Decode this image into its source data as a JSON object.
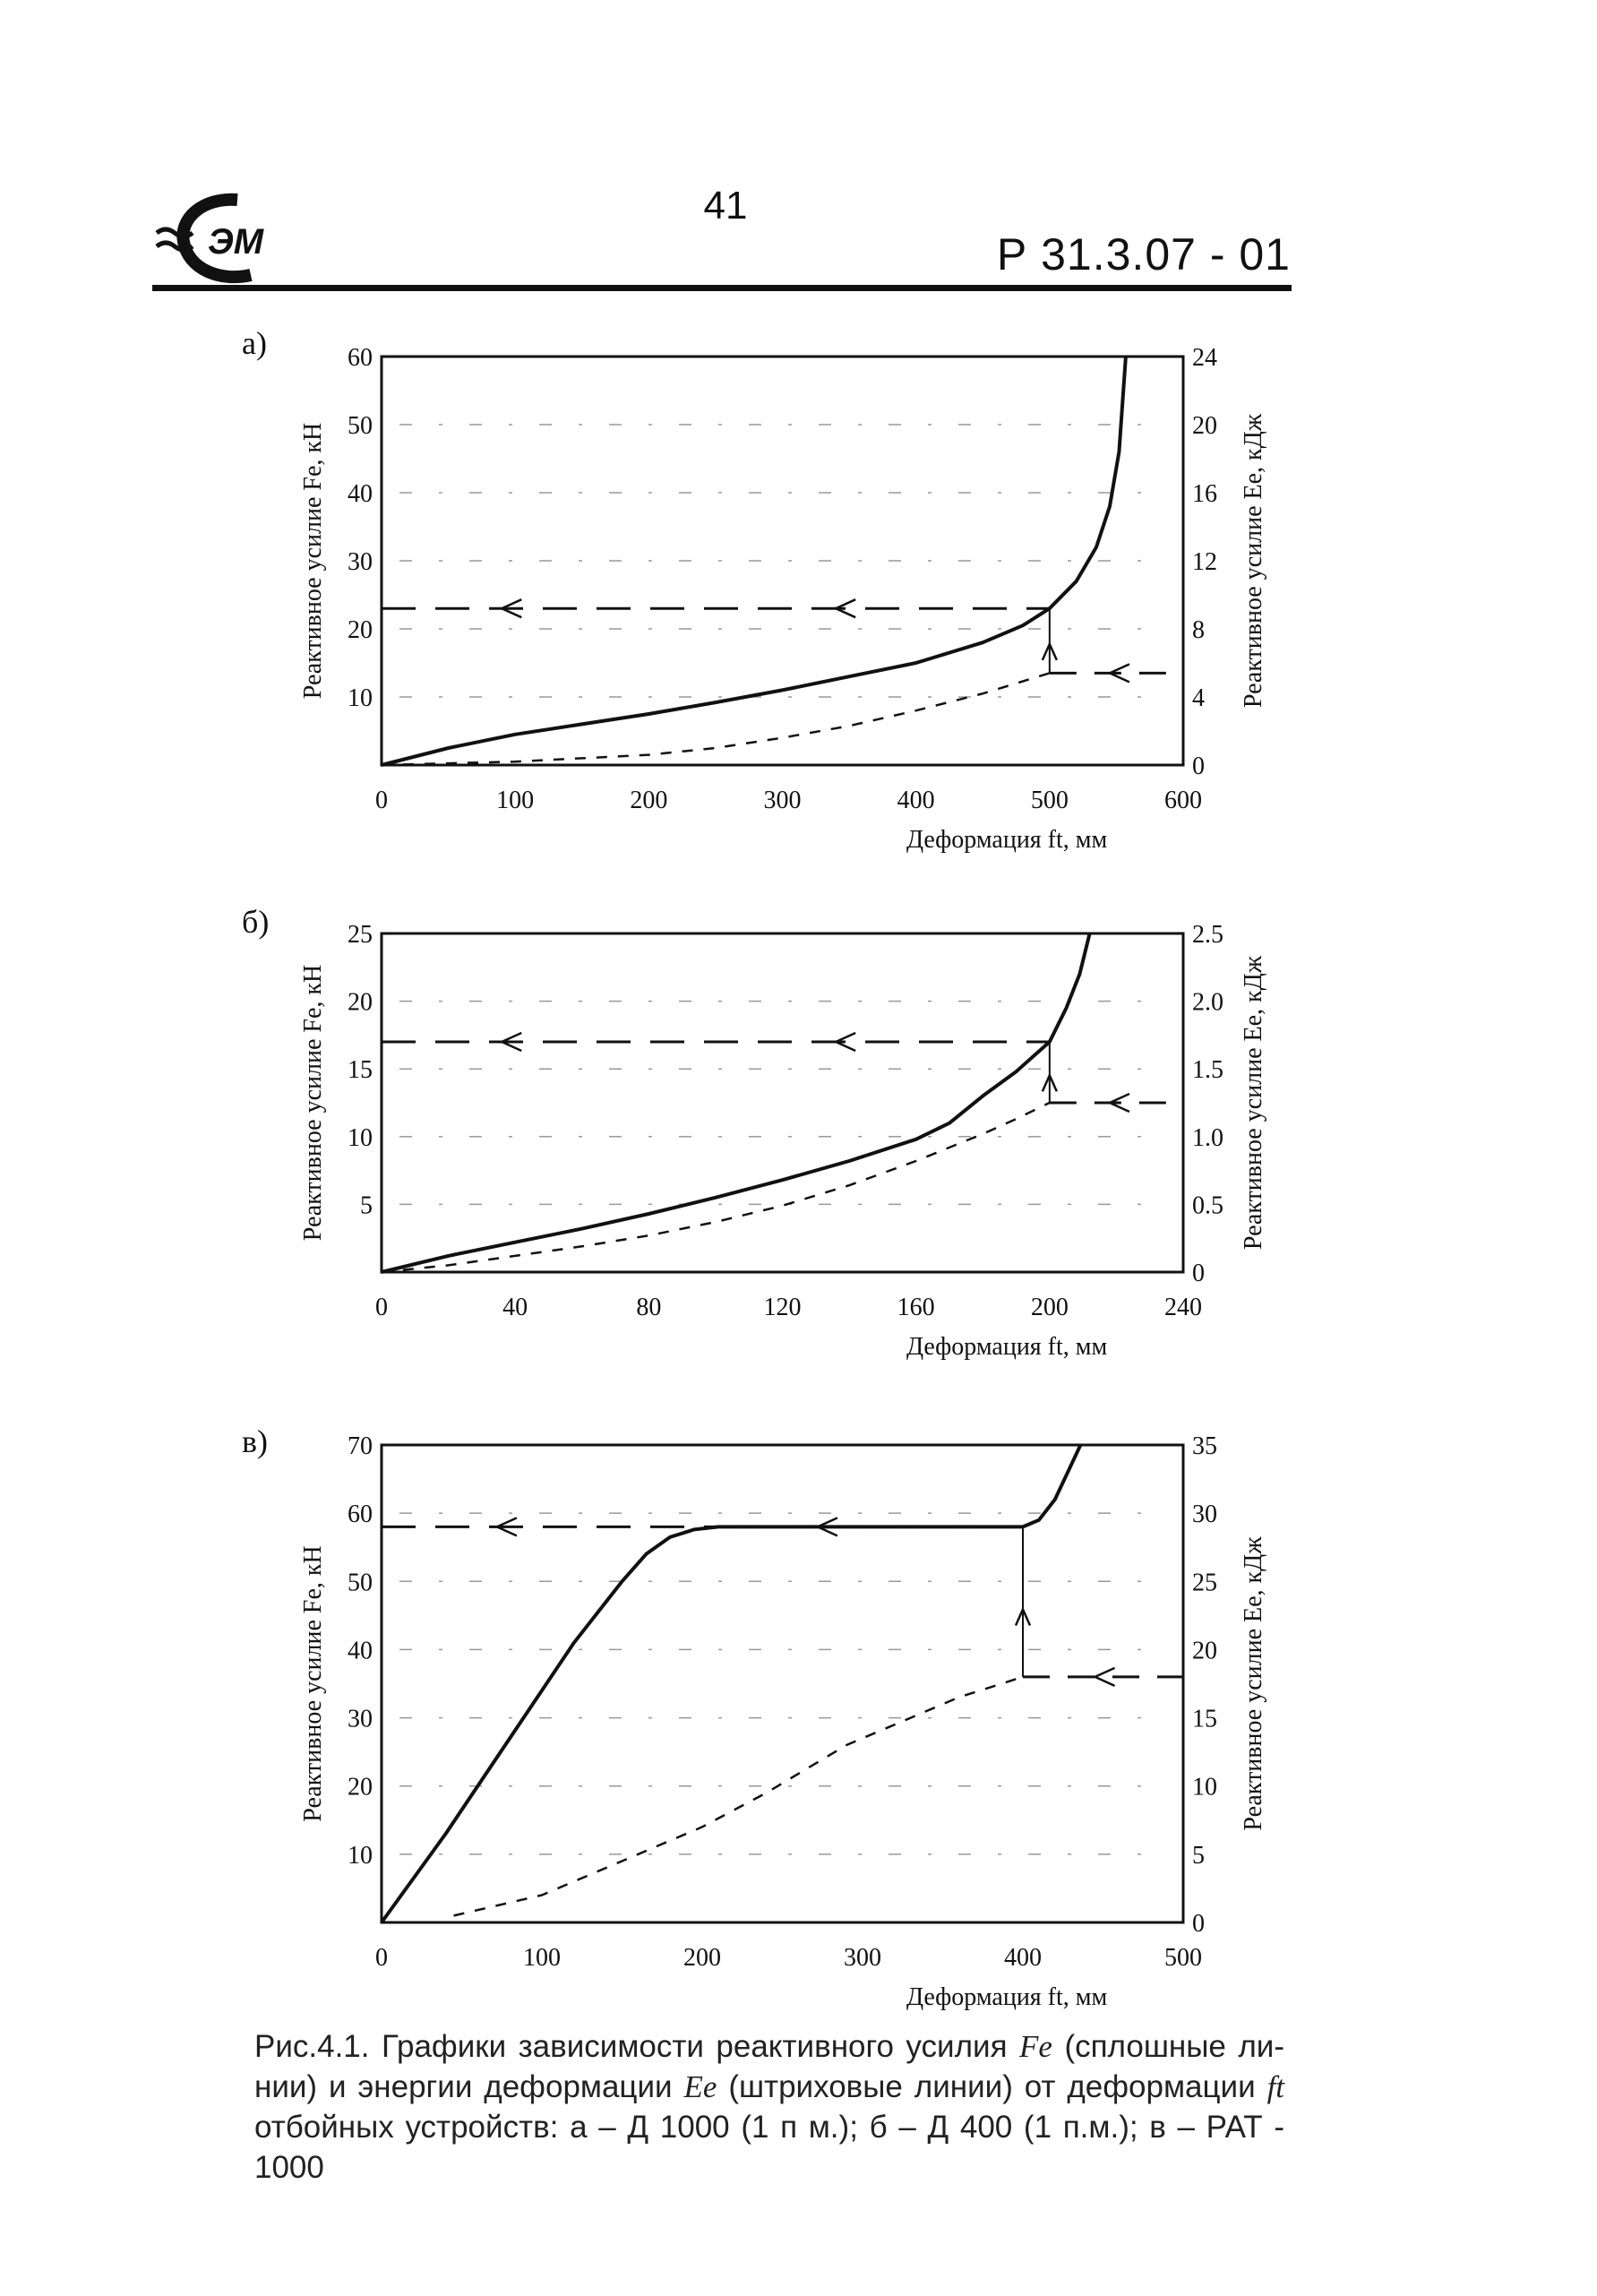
{
  "header": {
    "page_number": "41",
    "doc_code": "Р 31.3.07 - 01",
    "logo_text": "ЭМ"
  },
  "caption": {
    "line1": "Рис.4.1. Графики зависимости реактивного усилия",
    "sym_F": "Fe",
    "line1b": "(сплошные ли-нии) и энергии деформации",
    "sym_E": "Ee",
    "line2b": "(штриховые линии) от деформации",
    "sym_f": "ft",
    "line3": "отбойных устройств: а – Д 1000 (1 п м.); б – Д 400 (1 п.м.); в – РАТ - 1000"
  },
  "chart_data": [
    {
      "panel": "а)",
      "type": "line",
      "xlabel": "Деформация ft, мм",
      "ylabel_left": "Реактивное усилие Fe, кН",
      "ylabel_right": "Реактивное усилие Ee, кДж",
      "xlim": [
        0,
        600
      ],
      "ylim_left": [
        0,
        60
      ],
      "ylim_right": [
        0,
        24
      ],
      "xticks": [
        "0",
        "100",
        "200",
        "300",
        "400",
        "500",
        "600"
      ],
      "yticks_left": [
        "",
        "10",
        "20",
        "30",
        "40",
        "50",
        "60"
      ],
      "yticks_right": [
        "0",
        "4",
        "8",
        "12",
        "16",
        "20",
        "24"
      ],
      "grid": "on (dashed)",
      "series": [
        {
          "name": "Fe (solid)",
          "axis": "left",
          "style": "solid",
          "x": [
            0,
            50,
            100,
            150,
            200,
            250,
            300,
            350,
            400,
            450,
            480,
            500,
            520,
            535,
            545,
            552,
            557
          ],
          "y": [
            0,
            2.5,
            4.5,
            6,
            7.5,
            9.2,
            11,
            13,
            15,
            18,
            20.5,
            23,
            27,
            32,
            38,
            46,
            60
          ]
        },
        {
          "name": "Ee (dashed)",
          "axis": "right",
          "style": "dashed",
          "x": [
            0,
            50,
            100,
            150,
            200,
            250,
            300,
            350,
            400,
            450,
            500
          ],
          "y": [
            0,
            0.1,
            0.2,
            0.4,
            0.6,
            1.0,
            1.6,
            2.3,
            3.2,
            4.2,
            5.4
          ]
        }
      ],
      "guides": {
        "x": 500,
        "Fe": 23,
        "Ee": 5.4
      }
    },
    {
      "panel": "б)",
      "type": "line",
      "xlabel": "Деформация ft, мм",
      "ylabel_left": "Реактивное усилие Fe, кН",
      "ylabel_right": "Реактивное усилие Ee, кДж",
      "xlim": [
        0,
        240
      ],
      "ylim_left": [
        0,
        25
      ],
      "ylim_right": [
        0,
        2.5
      ],
      "xticks": [
        "0",
        "40",
        "80",
        "120",
        "160",
        "200",
        "240"
      ],
      "yticks_left": [
        "",
        "5",
        "10",
        "15",
        "20",
        "25"
      ],
      "yticks_right": [
        "0",
        "0.5",
        "1.0",
        "1.5",
        "2.0",
        "2.5"
      ],
      "grid": "on (dashed)",
      "series": [
        {
          "name": "Fe (solid)",
          "axis": "left",
          "style": "solid",
          "x": [
            0,
            20,
            40,
            60,
            80,
            100,
            120,
            140,
            160,
            170,
            180,
            190,
            200,
            205,
            209,
            212
          ],
          "y": [
            0,
            1.2,
            2.2,
            3.2,
            4.3,
            5.5,
            6.8,
            8.2,
            9.8,
            11,
            13,
            14.8,
            17,
            19.5,
            22,
            25
          ]
        },
        {
          "name": "Ee (dashed)",
          "axis": "right",
          "style": "dashed",
          "x": [
            0,
            20,
            40,
            60,
            80,
            100,
            120,
            140,
            160,
            180,
            190,
            200
          ],
          "y": [
            0,
            0.05,
            0.12,
            0.19,
            0.27,
            0.37,
            0.49,
            0.64,
            0.82,
            1.02,
            1.13,
            1.25
          ]
        }
      ],
      "guides": {
        "x": 200,
        "Fe": 17,
        "Ee": 1.25
      }
    },
    {
      "panel": "в)",
      "type": "line",
      "xlabel": "Деформация ft, мм",
      "ylabel_left": "Реактивное усилие Fe, кН",
      "ylabel_right": "Реактивное усилие Ee, кДж",
      "xlim": [
        0,
        500
      ],
      "ylim_left": [
        0,
        70
      ],
      "ylim_right": [
        0,
        35
      ],
      "xticks": [
        "0",
        "100",
        "200",
        "300",
        "400",
        "500"
      ],
      "yticks_left": [
        "",
        "10",
        "20",
        "30",
        "40",
        "50",
        "60",
        "70"
      ],
      "yticks_right": [
        "0",
        "5",
        "10",
        "15",
        "20",
        "25",
        "30",
        "35"
      ],
      "grid": "on (dashed)",
      "series": [
        {
          "name": "Fe (solid)",
          "axis": "left",
          "style": "solid",
          "x": [
            0,
            40,
            80,
            120,
            150,
            165,
            180,
            195,
            210,
            250,
            300,
            350,
            400,
            410,
            420,
            430,
            436
          ],
          "y": [
            0,
            13,
            27,
            41,
            50,
            54,
            56.5,
            57.6,
            58,
            58,
            58,
            58,
            58,
            59,
            62,
            67,
            70
          ]
        },
        {
          "name": "Ee (dashed)",
          "axis": "right",
          "style": "dashed",
          "x": [
            45,
            100,
            150,
            200,
            240,
            290,
            330,
            360,
            400
          ],
          "y": [
            0.5,
            2,
            4.5,
            7,
            9.5,
            13,
            15,
            16.5,
            18
          ]
        }
      ],
      "guides": {
        "x": 400,
        "Fe": 58,
        "Ee": 18
      }
    }
  ]
}
